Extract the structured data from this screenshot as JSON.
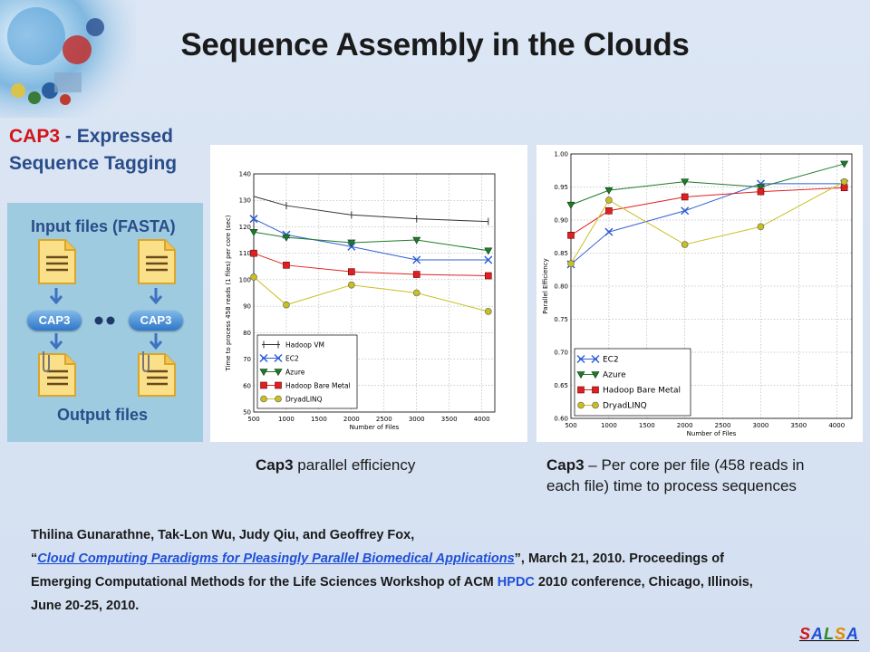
{
  "title": "Sequence Assembly in the Clouds",
  "heading": {
    "cap3": "CAP3",
    "rest_line1": " - Expressed",
    "line2": "Sequence Tagging"
  },
  "workflow": {
    "input_label": "Input files (FASTA)",
    "cap3_label": "CAP3",
    "output_label": "Output files"
  },
  "captions": {
    "left_bold": "Cap3",
    "left_rest": " parallel efficiency",
    "right_bold": "Cap3",
    "right_rest_line1": " – Per core per file (458 reads in",
    "right_line2": "each file) time to process sequences"
  },
  "citation": {
    "authors": "Thilina Gunarathne, Tak-Lon Wu, Judy Qiu, and Geoffrey Fox,",
    "open_quote": "“",
    "paper_title": "Cloud Computing Paradigms for Pleasingly Parallel Biomedical Applications",
    "after_title": "”, March 21, 2010. Proceedings of",
    "line3_prefix": "Emerging Computational Methods for the Life Sciences Workshop of ACM ",
    "hpdc": "HPDC",
    "line3_suffix": " 2010 conference, Chicago, Illinois,",
    "line4": "June 20-25, 2010."
  },
  "footer": {
    "salsa_letters": [
      "S",
      "A",
      "L",
      "S",
      "A"
    ],
    "salsa_colors": [
      "#d0181e",
      "#1f4fd6",
      "#2a8a2a",
      "#e08a00",
      "#1f4fd6"
    ]
  },
  "chart_data": [
    {
      "type": "line",
      "ylabel": "Time to process 458 reads (1 files) per core (sec)",
      "xlabel": "Number of Files",
      "xlim": [
        500,
        4200
      ],
      "ylim": [
        50,
        140
      ],
      "xticks": [
        500,
        1000,
        1500,
        2000,
        2500,
        3000,
        3500,
        4000
      ],
      "yticks": [
        50,
        60,
        70,
        80,
        90,
        100,
        110,
        120,
        130,
        140
      ],
      "grid": true,
      "legend_position": "bottom-left",
      "series": [
        {
          "name": "Hadoop VM",
          "marker": "bar",
          "color": "#333333",
          "x": [
            500,
            1000,
            2000,
            3000,
            4100
          ],
          "y": [
            131.5,
            128,
            124.5,
            123,
            122
          ]
        },
        {
          "name": "EC2",
          "marker": "x",
          "color": "#2f5ed6",
          "x": [
            500,
            1000,
            2000,
            3000,
            4100
          ],
          "y": [
            123,
            117,
            112.5,
            107.5,
            107.5
          ]
        },
        {
          "name": "Azure",
          "marker": "tri",
          "color": "#1f7a2a",
          "x": [
            500,
            1000,
            2000,
            3000,
            4100
          ],
          "y": [
            118,
            116,
            114,
            115,
            111
          ]
        },
        {
          "name": "Hadoop Bare Metal",
          "marker": "square",
          "color": "#e02020",
          "x": [
            500,
            1000,
            2000,
            3000,
            4100
          ],
          "y": [
            110,
            105.5,
            103,
            102,
            101.5
          ]
        },
        {
          "name": "DryadLINQ",
          "marker": "circle",
          "color": "#c8c020",
          "x": [
            500,
            1000,
            2000,
            3000,
            4100
          ],
          "y": [
            101,
            90.5,
            98,
            95,
            88
          ]
        }
      ]
    },
    {
      "type": "line",
      "ylabel": "Parallel Efficiency",
      "xlabel": "Number of Files",
      "xlim": [
        500,
        4200
      ],
      "ylim": [
        0.6,
        1.0
      ],
      "xticks": [
        500,
        1000,
        1500,
        2000,
        2500,
        3000,
        3500,
        4000
      ],
      "yticks": [
        0.6,
        0.65,
        0.7,
        0.75,
        0.8,
        0.85,
        0.9,
        0.95,
        1.0
      ],
      "grid": true,
      "legend_position": "bottom-left",
      "series": [
        {
          "name": "EC2",
          "marker": "x",
          "color": "#2f5ed6",
          "x": [
            500,
            1000,
            2000,
            3000,
            4100
          ],
          "y": [
            0.833,
            0.882,
            0.914,
            0.955,
            0.955
          ]
        },
        {
          "name": "Azure",
          "marker": "tri",
          "color": "#1f7a2a",
          "x": [
            500,
            1000,
            2000,
            3000,
            4100
          ],
          "y": [
            0.923,
            0.945,
            0.958,
            0.95,
            0.985
          ]
        },
        {
          "name": "Hadoop Bare Metal",
          "marker": "square",
          "color": "#e02020",
          "x": [
            500,
            1000,
            2000,
            3000,
            4100
          ],
          "y": [
            0.877,
            0.914,
            0.935,
            0.943,
            0.949
          ]
        },
        {
          "name": "DryadLINQ",
          "marker": "circle",
          "color": "#c8c020",
          "x": [
            500,
            1000,
            2000,
            3000,
            4100
          ],
          "y": [
            0.834,
            0.93,
            0.863,
            0.89,
            0.958
          ]
        }
      ]
    }
  ]
}
